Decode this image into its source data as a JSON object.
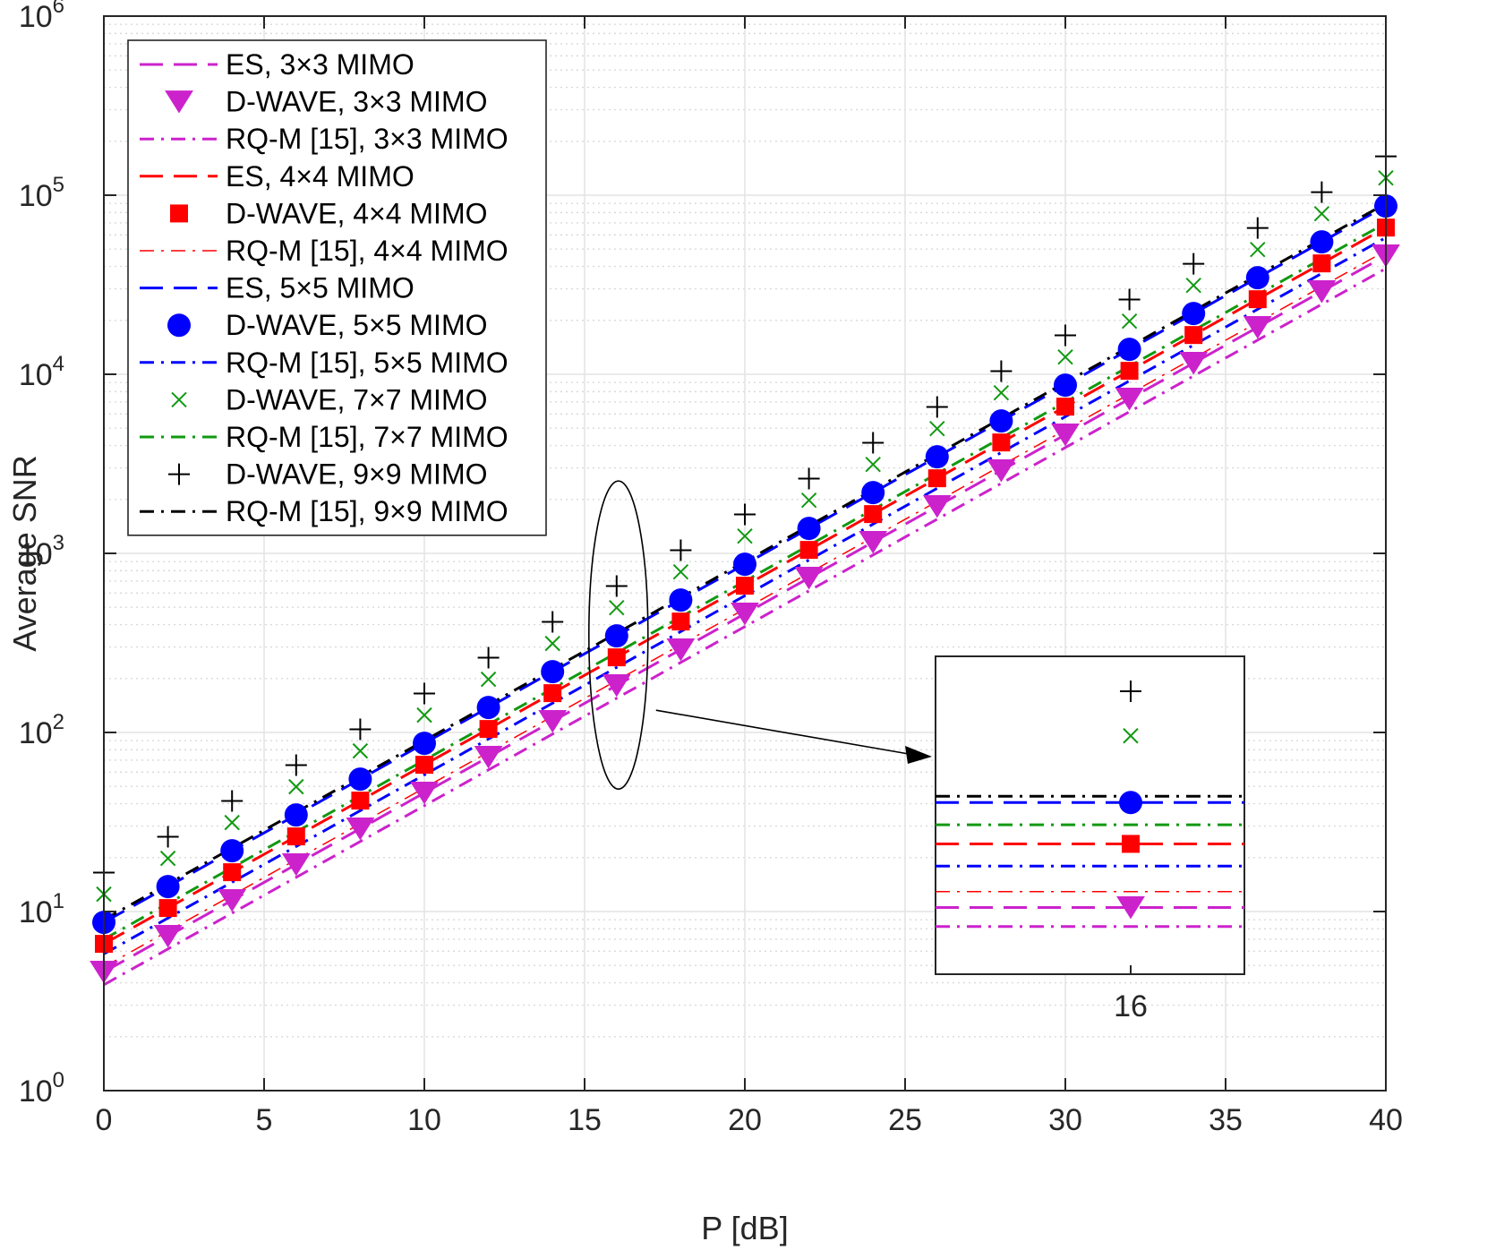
{
  "chart_data": {
    "type": "line",
    "xlabel": "P [dB]",
    "ylabel": "Average SNR",
    "xlim": [
      0,
      40
    ],
    "ylim": [
      1,
      1000000
    ],
    "yscale": "log",
    "grid": true,
    "minor_grid": true,
    "legend_position": "top-left",
    "x_ticks": [
      0,
      5,
      10,
      15,
      20,
      25,
      30,
      35,
      40
    ],
    "x_tick_labels": [
      "0",
      "5",
      "10",
      "15",
      "20",
      "25",
      "30",
      "35",
      "40"
    ],
    "y_ticks": [
      1,
      10,
      100,
      1000,
      10000,
      100000,
      1000000
    ],
    "y_tick_base": "10",
    "y_tick_exponents": [
      "0",
      "1",
      "2",
      "3",
      "4",
      "5",
      "6"
    ],
    "x": [
      0,
      2,
      4,
      6,
      8,
      10,
      12,
      14,
      16,
      18,
      20,
      22,
      24,
      26,
      28,
      30,
      32,
      34,
      36,
      38,
      40
    ],
    "series": [
      {
        "name": "ES, 3×3 MIMO",
        "kind": "line",
        "dash": "long",
        "color": "#cc22cc",
        "width": 3,
        "start": 4.6
      },
      {
        "name": "D-WAVE, 3×3 MIMO",
        "kind": "marker",
        "marker": "triangle-down",
        "color": "#cc22cc",
        "start": 4.6
      },
      {
        "name": "RQ-M [15], 3×3 MIMO",
        "kind": "line",
        "dash": "dashdot",
        "color": "#cc22cc",
        "width": 3,
        "start": 3.9
      },
      {
        "name": "ES, 4×4 MIMO",
        "kind": "line",
        "dash": "long",
        "color": "#ff0000",
        "width": 3,
        "start": 6.6
      },
      {
        "name": "D-WAVE, 4×4 MIMO",
        "kind": "marker",
        "marker": "square",
        "color": "#ff0000",
        "start": 6.6
      },
      {
        "name": "RQ-M [15], 4×4 MIMO",
        "kind": "line",
        "dash": "dashdot",
        "color": "#ff0000",
        "width": 1.5,
        "start": 4.9
      },
      {
        "name": "ES, 5×5 MIMO",
        "kind": "line",
        "dash": "long",
        "color": "#0000ff",
        "width": 3,
        "start": 8.7
      },
      {
        "name": "D-WAVE, 5×5 MIMO",
        "kind": "marker",
        "marker": "circle",
        "color": "#0000ff",
        "start": 8.7
      },
      {
        "name": "RQ-M [15], 5×5 MIMO",
        "kind": "line",
        "dash": "dashdot",
        "color": "#0000ff",
        "width": 3,
        "start": 5.8
      },
      {
        "name": "D-WAVE, 7×7 MIMO",
        "kind": "marker",
        "marker": "x",
        "color": "#119911",
        "start": 12.5
      },
      {
        "name": "RQ-M [15], 7×7 MIMO",
        "kind": "line",
        "dash": "dashdot",
        "color": "#119911",
        "width": 3,
        "start": 7.0
      },
      {
        "name": "D-WAVE, 9×9 MIMO",
        "kind": "marker",
        "marker": "plus",
        "color": "#000000",
        "start": 16.5
      },
      {
        "name": "RQ-M [15], 9×9 MIMO",
        "kind": "line",
        "dash": "dashdot",
        "color": "#000000",
        "width": 3,
        "start": 9.0
      }
    ],
    "growth_per_db": 1.2589,
    "annotations": [
      {
        "type": "ellipse",
        "center_x": 16,
        "center_y": 350
      },
      {
        "type": "arrow",
        "to": "inset"
      }
    ],
    "inset": {
      "x_tick_label": "16",
      "rows": [
        {
          "series": "D-WAVE, 9×9 MIMO",
          "level": 0.11
        },
        {
          "series": "D-WAVE, 7×7 MIMO",
          "level": 0.25
        },
        {
          "series": "RQ-M [15], 9×9 MIMO",
          "level": 0.44
        },
        {
          "series": "ES, 5×5 MIMO",
          "level": 0.46
        },
        {
          "series": "D-WAVE, 5×5 MIMO",
          "level": 0.46
        },
        {
          "series": "RQ-M [15], 7×7 MIMO",
          "level": 0.53
        },
        {
          "series": "ES, 4×4 MIMO",
          "level": 0.59
        },
        {
          "series": "D-WAVE, 4×4 MIMO",
          "level": 0.59
        },
        {
          "series": "RQ-M [15], 5×5 MIMO",
          "level": 0.66
        },
        {
          "series": "RQ-M [15], 4×4 MIMO",
          "level": 0.74
        },
        {
          "series": "ES, 3×3 MIMO",
          "level": 0.79
        },
        {
          "series": "D-WAVE, 3×3 MIMO",
          "level": 0.79
        },
        {
          "series": "RQ-M [15], 3×3 MIMO",
          "level": 0.85
        }
      ]
    }
  }
}
